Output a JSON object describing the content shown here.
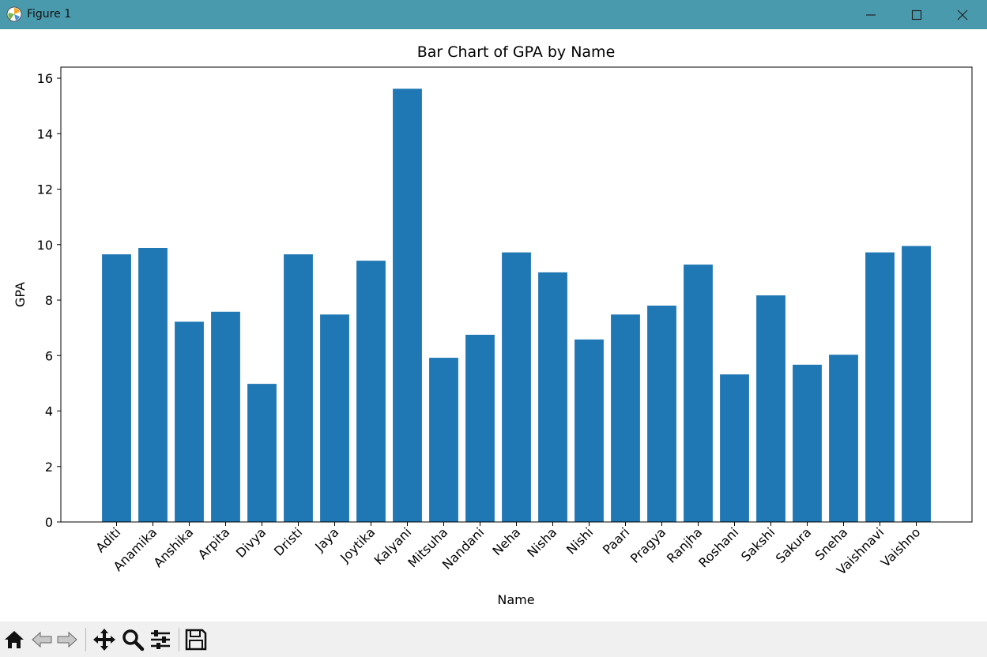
{
  "window": {
    "title": "Figure 1",
    "titlebar_color": "#4a9aae"
  },
  "toolbar": {
    "buttons": [
      "home-icon",
      "back-icon",
      "forward-icon",
      "pan-icon",
      "zoom-icon",
      "configure-icon",
      "save-icon"
    ]
  },
  "chart_data": {
    "type": "bar",
    "title": "Bar Chart of GPA by Name",
    "xlabel": "Name",
    "ylabel": "GPA",
    "ylim": [
      0,
      16.4
    ],
    "yticks": [
      0,
      2,
      4,
      6,
      8,
      10,
      12,
      14,
      16
    ],
    "bar_color": "#1f77b4",
    "grid": false,
    "categories": [
      "Aditi",
      "Anamika",
      "Anshika",
      "Arpita",
      "Divya",
      "Dristi",
      "Jaya",
      "Joytika",
      "Kalyani",
      "Mitsuha",
      "Nandani",
      "Neha",
      "Nisha",
      "Nishi",
      "Paari",
      "Pragya",
      "Ranjha",
      "Roshani",
      "Sakshi",
      "Sakura",
      "Sneha",
      "Vaishnavi",
      "Vaishno"
    ],
    "values": [
      9.65,
      9.88,
      7.22,
      7.58,
      4.98,
      9.65,
      7.48,
      9.42,
      15.62,
      5.92,
      6.75,
      9.72,
      9.0,
      6.58,
      7.48,
      7.8,
      9.28,
      5.32,
      8.17,
      5.67,
      6.03,
      9.72,
      9.95
    ]
  }
}
